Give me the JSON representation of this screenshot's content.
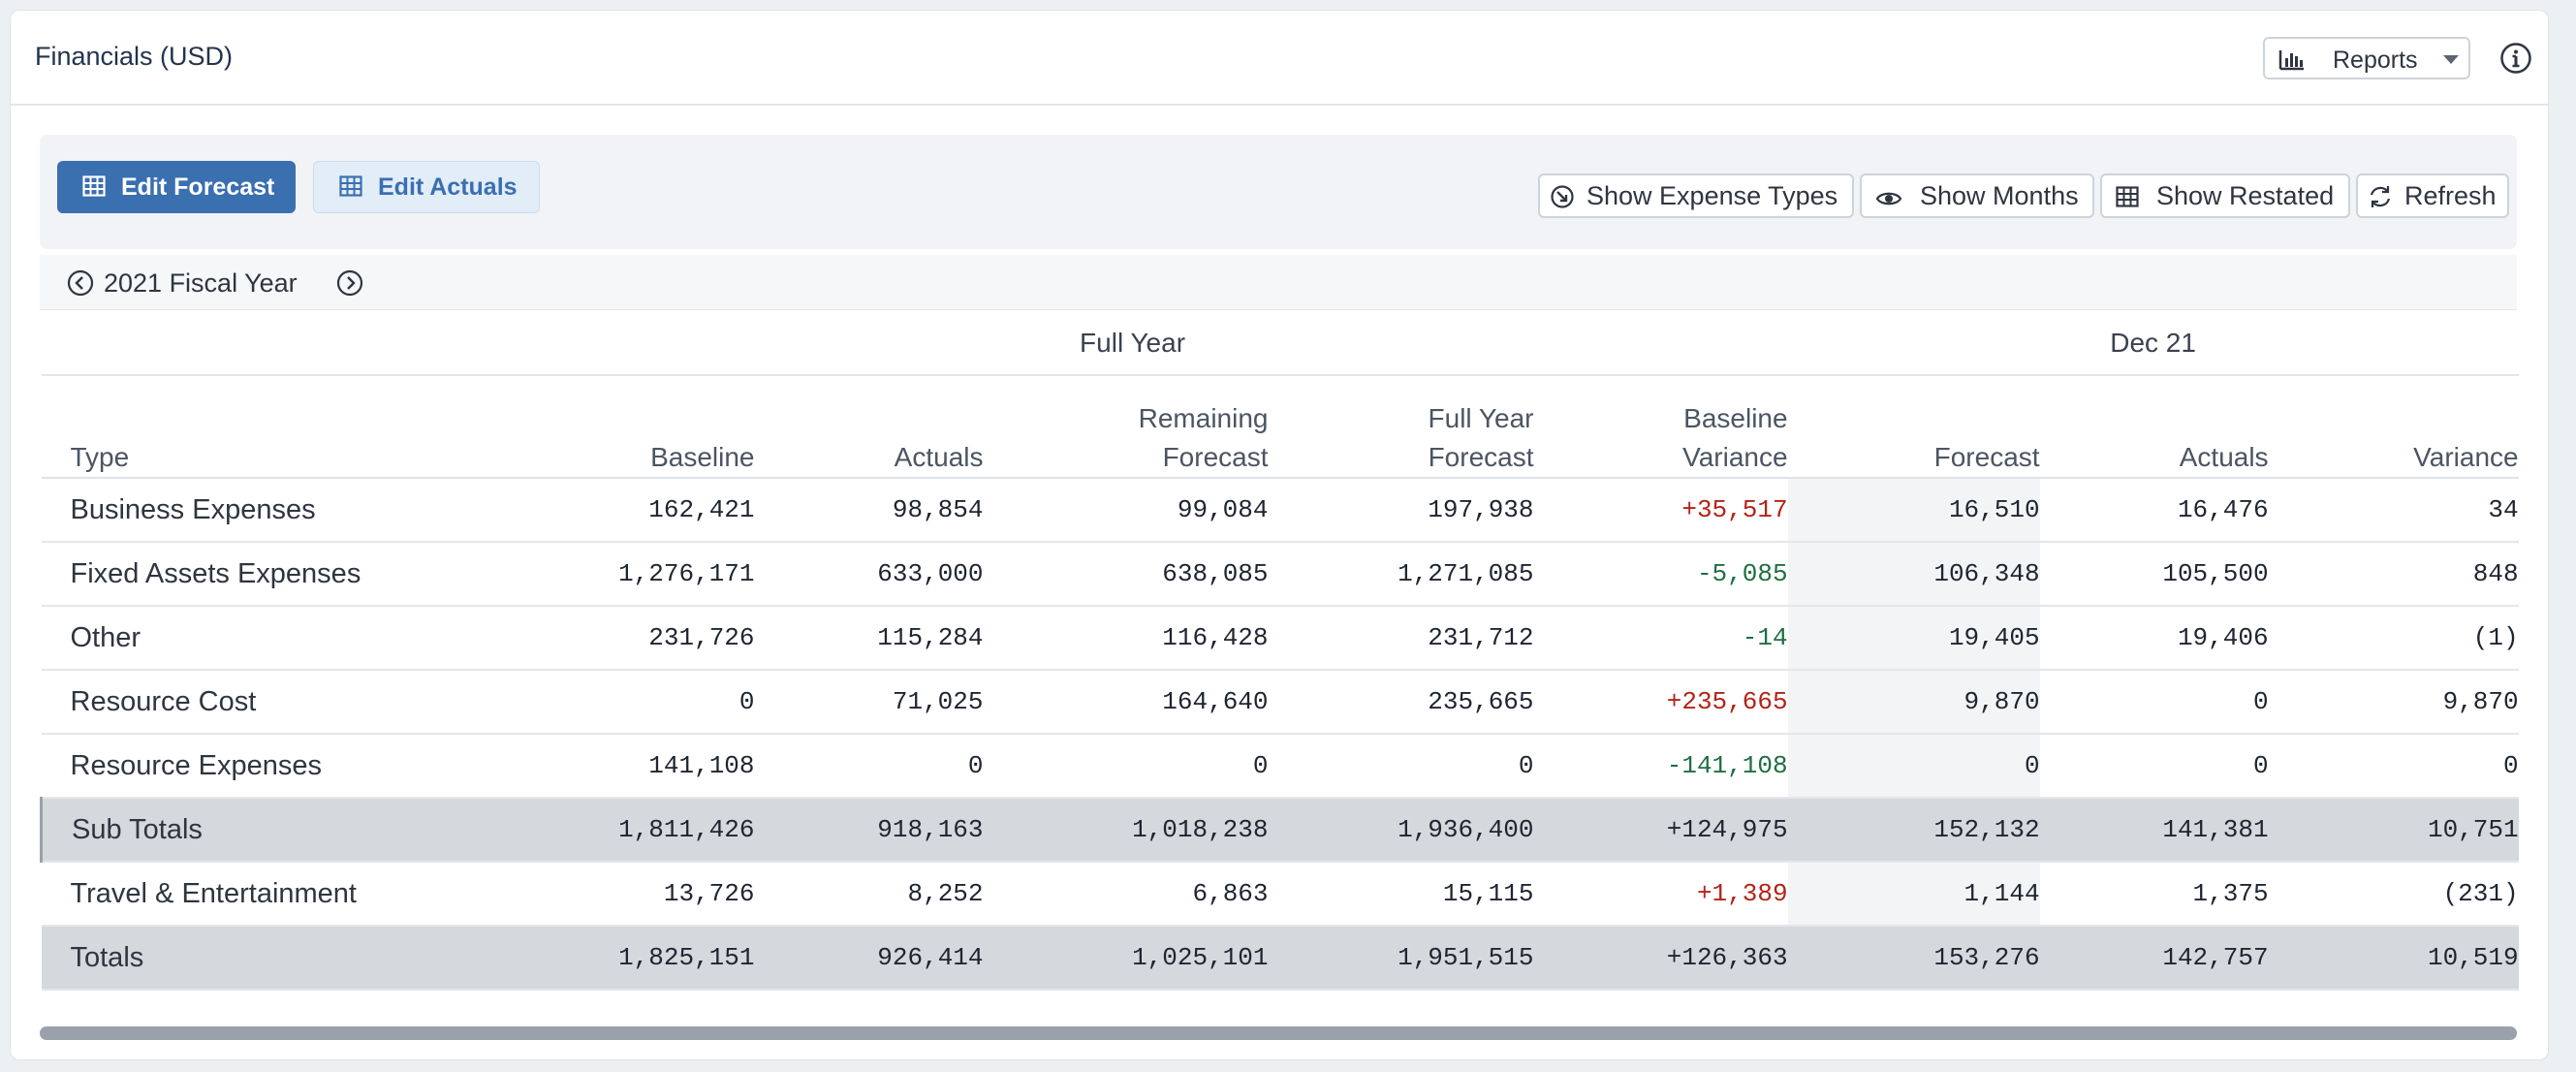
{
  "header": {
    "title": "Financials (USD)",
    "reports_label": "Reports",
    "reports_icon": "bar-chart-icon",
    "info_icon": "info-icon"
  },
  "toolbar": {
    "edit_forecast_label": "Edit Forecast",
    "edit_actuals_label": "Edit Actuals",
    "show_expense_types_label": "Show Expense Types",
    "show_months_label": "Show Months",
    "show_restated_label": "Show Restated",
    "refresh_label": "Refresh"
  },
  "year_nav": {
    "label": "2021 Fiscal Year"
  },
  "table": {
    "groups": {
      "full_year": "Full Year",
      "month": "Dec 21"
    },
    "columns": {
      "type": "Type",
      "baseline": "Baseline",
      "actuals": "Actuals",
      "remaining_forecast_1": "Remaining",
      "remaining_forecast_2": "Forecast",
      "full_year_forecast_1": "Full Year",
      "full_year_forecast_2": "Forecast",
      "baseline_variance_1": "Baseline",
      "baseline_variance_2": "Variance",
      "month_forecast": "Forecast",
      "month_actuals": "Actuals",
      "month_variance": "Variance"
    },
    "rows": [
      {
        "type": "Business Expenses",
        "baseline": "162,421",
        "actuals": "98,854",
        "remaining": "99,084",
        "fy_forecast": "197,938",
        "variance": "+35,517",
        "m_forecast": "16,510",
        "m_actuals": "16,476",
        "m_variance": "34"
      },
      {
        "type": "Fixed Assets Expenses",
        "baseline": "1,276,171",
        "actuals": "633,000",
        "remaining": "638,085",
        "fy_forecast": "1,271,085",
        "variance": "-5,085",
        "m_forecast": "106,348",
        "m_actuals": "105,500",
        "m_variance": "848"
      },
      {
        "type": "Other",
        "baseline": "231,726",
        "actuals": "115,284",
        "remaining": "116,428",
        "fy_forecast": "231,712",
        "variance": "-14",
        "m_forecast": "19,405",
        "m_actuals": "19,406",
        "m_variance": "(1)"
      },
      {
        "type": "Resource Cost",
        "baseline": "0",
        "actuals": "71,025",
        "remaining": "164,640",
        "fy_forecast": "235,665",
        "variance": "+235,665",
        "m_forecast": "9,870",
        "m_actuals": "0",
        "m_variance": "9,870"
      },
      {
        "type": "Resource Expenses",
        "baseline": "141,108",
        "actuals": "0",
        "remaining": "0",
        "fy_forecast": "0",
        "variance": "-141,108",
        "m_forecast": "0",
        "m_actuals": "0",
        "m_variance": "0"
      },
      {
        "type": "Sub Totals",
        "baseline": "1,811,426",
        "actuals": "918,163",
        "remaining": "1,018,238",
        "fy_forecast": "1,936,400",
        "variance": "+124,975",
        "m_forecast": "152,132",
        "m_actuals": "141,381",
        "m_variance": "10,751"
      },
      {
        "type": "Travel & Entertainment",
        "baseline": "13,726",
        "actuals": "8,252",
        "remaining": "6,863",
        "fy_forecast": "15,115",
        "variance": "+1,389",
        "m_forecast": "1,144",
        "m_actuals": "1,375",
        "m_variance": "(231)"
      },
      {
        "type": "Totals",
        "baseline": "1,825,151",
        "actuals": "926,414",
        "remaining": "1,025,101",
        "fy_forecast": "1,951,515",
        "variance": "+126,363",
        "m_forecast": "153,276",
        "m_actuals": "142,757",
        "m_variance": "10,519"
      }
    ]
  },
  "colors": {
    "primary": "#3a6fb0",
    "positive_variance": "#b42318",
    "negative_variance": "#1f6f43",
    "subtotal_row": "#d5d8dd"
  }
}
